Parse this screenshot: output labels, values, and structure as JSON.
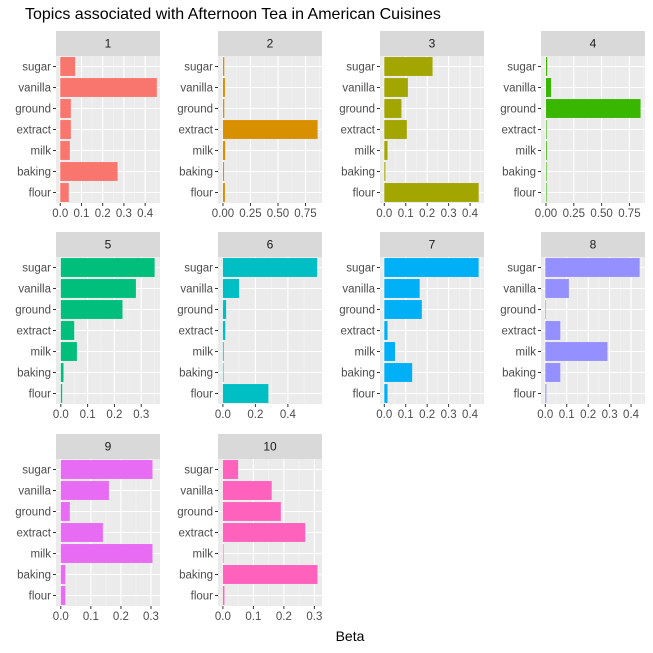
{
  "chart_data": {
    "type": "bar",
    "orientation": "horizontal",
    "faceted": true,
    "title": "Topics associated with Afternoon Tea in American Cuisines",
    "xlabel": "Beta",
    "ylabel": "",
    "categories": [
      "sugar",
      "vanilla",
      "ground",
      "extract",
      "milk",
      "baking",
      "flour"
    ],
    "grid": true,
    "panels": [
      {
        "name": "1",
        "color": "#F8766D",
        "xlim": [
          -0.02,
          0.47
        ],
        "ticks": [
          0,
          0.1,
          0.2,
          0.3,
          0.4
        ],
        "tick_labels": [
          "0.0",
          "0.1",
          "0.2",
          "0.3",
          "0.4"
        ],
        "values": [
          0.07,
          0.455,
          0.05,
          0.05,
          0.045,
          0.27,
          0.04
        ]
      },
      {
        "name": "2",
        "color": "#D89000",
        "xlim": [
          -0.045,
          0.9
        ],
        "ticks": [
          0,
          0.25,
          0.5,
          0.75
        ],
        "tick_labels": [
          "0.00",
          "0.25",
          "0.50",
          "0.75"
        ],
        "values": [
          0.012,
          0.018,
          0.012,
          0.86,
          0.02,
          0.01,
          0.018
        ]
      },
      {
        "name": "3",
        "color": "#A3A500",
        "xlim": [
          -0.02,
          0.465
        ],
        "ticks": [
          0,
          0.1,
          0.2,
          0.3,
          0.4
        ],
        "tick_labels": [
          "0.0",
          "0.1",
          "0.2",
          "0.3",
          "0.4"
        ],
        "values": [
          0.225,
          0.11,
          0.08,
          0.105,
          0.015,
          0.005,
          0.44
        ]
      },
      {
        "name": "4",
        "color": "#39B600",
        "xlim": [
          -0.045,
          0.89
        ],
        "ticks": [
          0,
          0.25,
          0.5,
          0.75
        ],
        "tick_labels": [
          "0.00",
          "0.25",
          "0.50",
          "0.75"
        ],
        "values": [
          0.01,
          0.045,
          0.85,
          0.003,
          0.007,
          0.005,
          0.003
        ]
      },
      {
        "name": "5",
        "color": "#00BF7D",
        "xlim": [
          -0.018,
          0.37
        ],
        "ticks": [
          0,
          0.1,
          0.2,
          0.3
        ],
        "tick_labels": [
          "0.0",
          "0.1",
          "0.2",
          "0.3"
        ],
        "values": [
          0.35,
          0.28,
          0.23,
          0.05,
          0.06,
          0.01,
          0.005
        ]
      },
      {
        "name": "6",
        "color": "#00BFC4",
        "xlim": [
          -0.03,
          0.61
        ],
        "ticks": [
          0,
          0.2,
          0.4
        ],
        "tick_labels": [
          "0.0",
          "0.2",
          "0.4"
        ],
        "values": [
          0.58,
          0.1,
          0.02,
          0.015,
          0.005,
          0.002,
          0.28
        ]
      },
      {
        "name": "7",
        "color": "#00B0F6",
        "xlim": [
          -0.02,
          0.465
        ],
        "ticks": [
          0,
          0.1,
          0.2,
          0.3,
          0.4
        ],
        "tick_labels": [
          "0.0",
          "0.1",
          "0.2",
          "0.3",
          "0.4"
        ],
        "values": [
          0.44,
          0.165,
          0.175,
          0.015,
          0.05,
          0.13,
          0.015
        ]
      },
      {
        "name": "8",
        "color": "#9590FF",
        "xlim": [
          -0.02,
          0.465
        ],
        "ticks": [
          0,
          0.1,
          0.2,
          0.3,
          0.4
        ],
        "tick_labels": [
          "0.0",
          "0.1",
          "0.2",
          "0.3",
          "0.4"
        ],
        "values": [
          0.44,
          0.11,
          0.003,
          0.07,
          0.29,
          0.07,
          0.005
        ]
      },
      {
        "name": "9",
        "color": "#E76BF3",
        "xlim": [
          -0.016,
          0.33
        ],
        "ticks": [
          0,
          0.1,
          0.2,
          0.3
        ],
        "tick_labels": [
          "0.0",
          "0.1",
          "0.2",
          "0.3"
        ],
        "values": [
          0.305,
          0.16,
          0.03,
          0.14,
          0.305,
          0.015,
          0.015
        ]
      },
      {
        "name": "10",
        "color": "#FF62BC",
        "xlim": [
          -0.016,
          0.325
        ],
        "ticks": [
          0,
          0.1,
          0.2,
          0.3
        ],
        "tick_labels": [
          "0.0",
          "0.1",
          "0.2",
          "0.3"
        ],
        "values": [
          0.05,
          0.16,
          0.19,
          0.27,
          0.002,
          0.31,
          0.005
        ]
      }
    ]
  }
}
